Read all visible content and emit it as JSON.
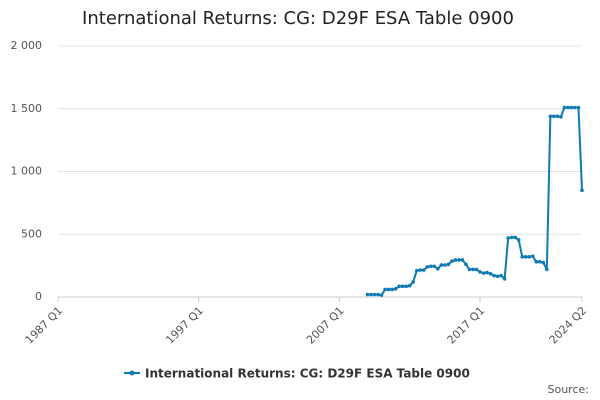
{
  "chart_data": {
    "type": "line",
    "title": "International Returns: CG: D29F ESA Table 0900",
    "source": "Source:",
    "categories": [
      "1987 Q1",
      null,
      null,
      null,
      null,
      null,
      null,
      null,
      null,
      null,
      null,
      null,
      null,
      null,
      null,
      null,
      null,
      null,
      null,
      null,
      null,
      null,
      null,
      null,
      null,
      null,
      null,
      null,
      null,
      null,
      null,
      null,
      null,
      null,
      null,
      null,
      null,
      null,
      null,
      null,
      "1997 Q1",
      null,
      null,
      null,
      null,
      null,
      null,
      null,
      null,
      null,
      null,
      null,
      null,
      null,
      null,
      null,
      null,
      null,
      null,
      null,
      null,
      null,
      null,
      null,
      null,
      null,
      null,
      null,
      null,
      null,
      null,
      null,
      null,
      null,
      null,
      null,
      null,
      null,
      null,
      null,
      "2007 Q1",
      null,
      null,
      null,
      null,
      null,
      null,
      null,
      null,
      null,
      null,
      null,
      null,
      null,
      null,
      null,
      null,
      null,
      null,
      null,
      null,
      null,
      null,
      null,
      null,
      null,
      null,
      null,
      null,
      null,
      null,
      null,
      null,
      null,
      null,
      null,
      null,
      null,
      null,
      null,
      "2017 Q1",
      null,
      null,
      null,
      null,
      null,
      null,
      null,
      null,
      null,
      null,
      null,
      null,
      null,
      null,
      null,
      null,
      null,
      null,
      null,
      null,
      null,
      null,
      null,
      null,
      null,
      null,
      null,
      null,
      "2024 Q2"
    ],
    "series": [
      {
        "name": "International Returns: CG: D29F ESA Table 0900",
        "color": "#0f7bb5",
        "values": [
          null,
          null,
          null,
          null,
          null,
          null,
          null,
          null,
          null,
          null,
          null,
          null,
          null,
          null,
          null,
          null,
          null,
          null,
          null,
          null,
          null,
          null,
          null,
          null,
          null,
          null,
          null,
          null,
          null,
          null,
          null,
          null,
          null,
          null,
          null,
          null,
          null,
          null,
          null,
          null,
          null,
          null,
          null,
          null,
          null,
          null,
          null,
          null,
          null,
          null,
          null,
          null,
          null,
          null,
          null,
          null,
          null,
          null,
          null,
          null,
          null,
          null,
          null,
          null,
          null,
          null,
          null,
          null,
          null,
          null,
          null,
          null,
          null,
          null,
          null,
          null,
          null,
          null,
          null,
          null,
          null,
          null,
          null,
          null,
          null,
          null,
          null,
          null,
          20,
          20,
          20,
          20,
          15,
          60,
          60,
          60,
          65,
          85,
          85,
          85,
          90,
          120,
          210,
          215,
          215,
          240,
          245,
          245,
          225,
          255,
          255,
          260,
          285,
          295,
          295,
          295,
          260,
          220,
          220,
          220,
          200,
          190,
          195,
          185,
          170,
          165,
          170,
          145,
          470,
          475,
          475,
          455,
          320,
          320,
          320,
          325,
          280,
          280,
          275,
          220,
          1440,
          1440,
          1440,
          1435,
          1510,
          1510,
          1510,
          1510,
          1510,
          850
        ]
      }
    ],
    "ylim": [
      0,
      2000
    ],
    "yticks": [
      0,
      500,
      {
        "value": 1000,
        "label": "1 000"
      },
      {
        "value": 1500,
        "label": "1 500"
      },
      {
        "value": 2000,
        "label": "2 000"
      }
    ],
    "grid": true
  }
}
